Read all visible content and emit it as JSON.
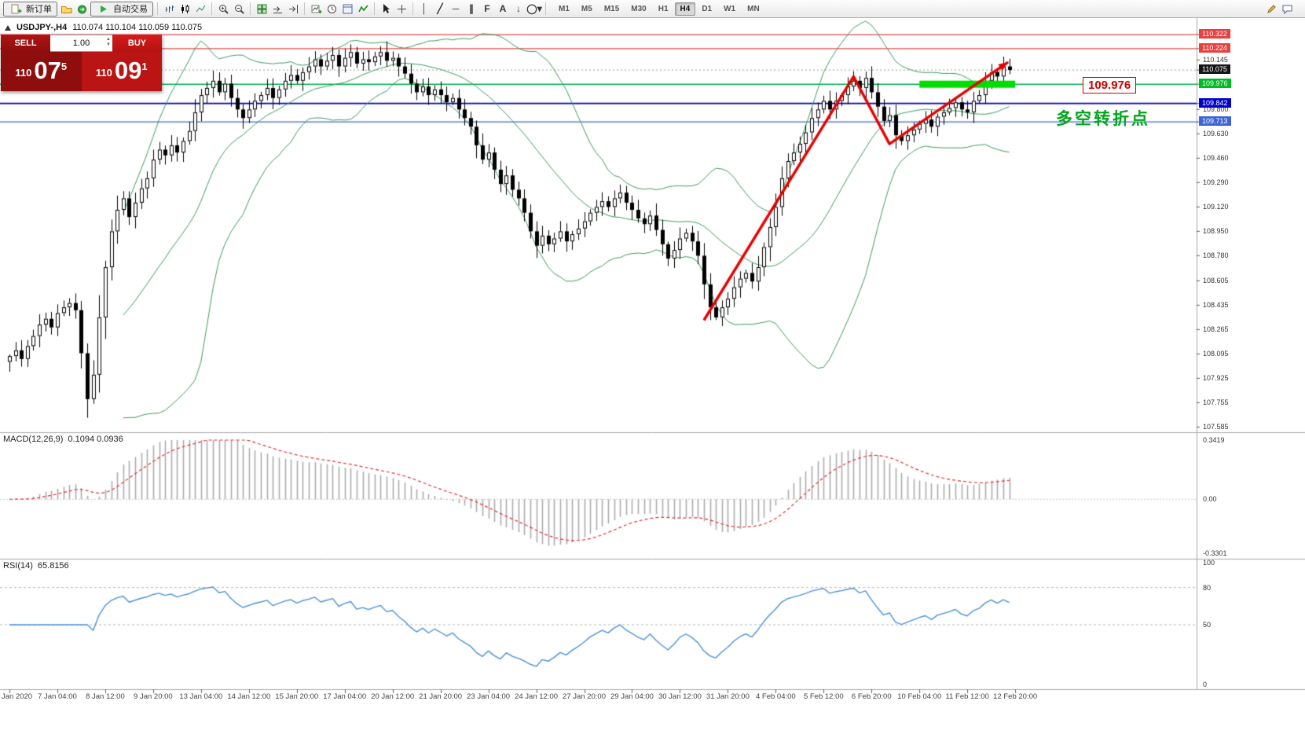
{
  "toolbar": {
    "new_order": "新订单",
    "autotrading": "自动交易",
    "icons": [
      "new-order-icon",
      "profiles-icon",
      "navigator-icon",
      "autotrading-play-icon",
      "bar-chart-icon",
      "candlestick-chart-icon",
      "line-chart-icon",
      "zoom-in-icon",
      "zoom-out-icon",
      "tile-windows-icon",
      "auto-scroll-icon",
      "chart-shift-icon",
      "new-chart-icon",
      "period-icon",
      "template-icon",
      "indicators-icon",
      "cursor-icon",
      "crosshair-icon",
      "vertical-line-icon",
      "trendline-icon",
      "horizontal-line-icon",
      "equidistant-channel-icon",
      "fibonacci-icon",
      "text-icon",
      "arrow-object-icon",
      "shapes-icon",
      "edit-icon",
      "chat-icon"
    ],
    "timeframes": [
      "M1",
      "M5",
      "M15",
      "M30",
      "H1",
      "H4",
      "D1",
      "W1",
      "MN"
    ],
    "active_timeframe": "H4"
  },
  "chart": {
    "symbol_title": "USDJPY-,H4",
    "ohlc_values": "110.074 110.104 110.059 110.075",
    "trade_panel": {
      "sell_label": "SELL",
      "buy_label": "BUY",
      "volume": "1.00",
      "sell_price": {
        "prefix": "110",
        "big": "07",
        "sup": "5"
      },
      "buy_price": {
        "prefix": "110",
        "big": "09",
        "sup": "1"
      }
    },
    "annotations": {
      "price_flag": "109.976",
      "flag_color": "#d40000",
      "note_text": "多空转折点",
      "note_color": "#00a61b"
    },
    "price_scale": {
      "ticks": [
        "110.145",
        "109.800",
        "109.630",
        "109.460",
        "109.290",
        "109.120",
        "108.950",
        "108.780",
        "108.605",
        "108.435",
        "108.265",
        "108.095",
        "107.925",
        "107.755",
        "107.585"
      ],
      "badges": [
        {
          "text": "110.322",
          "bg": "#e84040",
          "fg": "#ffffff"
        },
        {
          "text": "110.224",
          "bg": "#e84040",
          "fg": "#ffffff"
        },
        {
          "text": "110.075",
          "bg": "#141414",
          "fg": "#ffffff"
        },
        {
          "text": "109.976",
          "bg": "#00bb22",
          "fg": "#ffffff"
        },
        {
          "text": "109.842",
          "bg": "#0000cc",
          "fg": "#ffffff"
        },
        {
          "text": "109.713",
          "bg": "#3c64d7",
          "fg": "#ffffff"
        }
      ]
    },
    "time_axis": [
      "Jan 2020",
      "7 Jan 04:00",
      "8 Jan 12:00",
      "9 Jan 20:00",
      "13 Jan 04:00",
      "14 Jan 12:00",
      "15 Jan 20:00",
      "17 Jan 04:00",
      "20 Jan 12:00",
      "21 Jan 20:00",
      "23 Jan 04:00",
      "24 Jan 12:00",
      "27 Jan 20:00",
      "29 Jan 04:00",
      "30 Jan 12:00",
      "31 Jan 20:00",
      "4 Feb 04:00",
      "5 Feb 12:00",
      "6 Feb 20:00",
      "10 Feb 04:00",
      "11 Feb 12:00",
      "12 Feb 20:00"
    ]
  },
  "macd_panel": {
    "label": "MACD(12,26,9)",
    "values": "0.1094 0.0936",
    "scale": [
      "0.3419",
      "0.00",
      "-0.3301"
    ]
  },
  "rsi_panel": {
    "label": "RSI(14)",
    "value": "65.8156",
    "scale": [
      "100",
      "80",
      "50",
      "0"
    ],
    "levels": [
      80,
      50
    ]
  },
  "chart_data": {
    "type": "candlestick",
    "symbol": "USDJPY",
    "timeframe": "H4",
    "ylim": [
      107.56,
      110.41
    ],
    "closes": [
      108.08,
      108.12,
      108.06,
      108.15,
      108.22,
      108.3,
      108.34,
      108.28,
      108.38,
      108.42,
      108.45,
      108.4,
      108.1,
      107.78,
      107.95,
      108.35,
      108.7,
      108.95,
      109.1,
      109.18,
      109.05,
      109.15,
      109.25,
      109.32,
      109.45,
      109.52,
      109.48,
      109.55,
      109.5,
      109.58,
      109.65,
      109.78,
      109.9,
      109.95,
      110.0,
      109.92,
      109.98,
      109.88,
      109.8,
      109.74,
      109.8,
      109.86,
      109.9,
      109.95,
      109.88,
      109.94,
      110.0,
      110.04,
      110.0,
      110.06,
      110.1,
      110.15,
      110.1,
      110.14,
      110.18,
      110.1,
      110.16,
      110.2,
      110.12,
      110.15,
      110.13,
      110.17,
      110.2,
      110.14,
      110.16,
      110.1,
      110.05,
      109.98,
      109.92,
      109.96,
      109.9,
      109.94,
      109.9,
      109.85,
      109.88,
      109.8,
      109.74,
      109.68,
      109.55,
      109.45,
      109.5,
      109.38,
      109.28,
      109.34,
      109.24,
      109.18,
      109.08,
      108.95,
      108.85,
      108.92,
      108.86,
      108.9,
      108.95,
      108.88,
      108.93,
      108.97,
      109.02,
      109.08,
      109.12,
      109.16,
      109.12,
      109.18,
      109.22,
      109.15,
      109.1,
      109.04,
      109.0,
      109.06,
      108.96,
      108.86,
      108.76,
      108.82,
      108.9,
      108.94,
      108.88,
      108.78,
      108.58,
      108.42,
      108.35,
      108.42,
      108.48,
      108.56,
      108.62,
      108.66,
      108.6,
      108.7,
      108.84,
      108.98,
      109.12,
      109.32,
      109.44,
      109.5,
      109.56,
      109.64,
      109.74,
      109.8,
      109.86,
      109.8,
      109.86,
      109.9,
      109.96,
      110.0,
      109.95,
      110.02,
      109.92,
      109.82,
      109.72,
      109.76,
      109.62,
      109.58,
      109.62,
      109.66,
      109.7,
      109.73,
      109.68,
      109.75,
      109.78,
      109.81,
      109.85,
      109.8,
      109.78,
      109.86,
      109.9,
      110.0,
      110.06,
      110.03,
      110.1,
      110.075
    ],
    "low_overrides": {
      "13": 107.65
    },
    "horizontal_lines": [
      {
        "price": 110.322,
        "color": "#e04848",
        "width": 1.2
      },
      {
        "price": 110.224,
        "color": "#e04848",
        "width": 1.2
      },
      {
        "price": 109.976,
        "color": "#00b050",
        "width": 1.4
      },
      {
        "price": 109.842,
        "color": "#0000bb",
        "width": 1.6
      },
      {
        "price": 109.713,
        "color": "#4466dd",
        "width": 1.2
      }
    ],
    "bid_line": {
      "price": 110.075,
      "color": "#9a9a9a",
      "style": "dashed"
    },
    "bollinger": {
      "period": 20,
      "deviation": 2,
      "color": "#3a9b5c"
    },
    "trend_arrow": {
      "color": "#e80000",
      "points_price": [
        [
          116,
          108.33
        ],
        [
          141,
          110.03
        ],
        [
          147,
          109.56
        ],
        [
          166.8,
          110.13
        ]
      ]
    },
    "highlight_bar": {
      "from_bar": 152,
      "to_bar": 168,
      "price": 109.976,
      "color": "#00dd00",
      "thickness": 9
    },
    "indicators": [
      {
        "name": "MACD",
        "params": [
          12,
          26,
          9
        ],
        "display": "0.1094 0.0936",
        "range": [
          -0.3301,
          0.3419
        ]
      },
      {
        "name": "RSI",
        "params": [
          14
        ],
        "display": "65.8156",
        "range": [
          0,
          100
        ]
      }
    ]
  }
}
